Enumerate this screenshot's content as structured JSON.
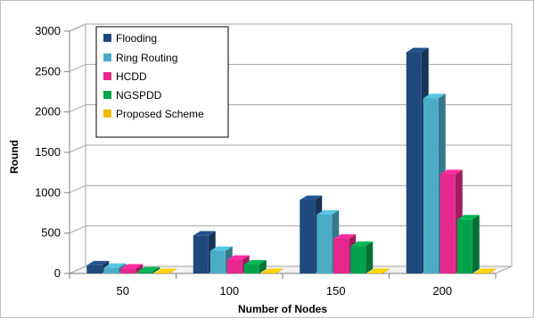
{
  "chart_data": {
    "type": "bar",
    "title": "",
    "xlabel": "Number of Nodes",
    "ylabel": "Round",
    "categories": [
      "50",
      "100",
      "150",
      "200"
    ],
    "ylim": [
      0,
      3000
    ],
    "yticks": [
      "0",
      "500",
      "1000",
      "1500",
      "2000",
      "2500",
      "3000"
    ],
    "grid": true,
    "legend_position": "top-left",
    "series": [
      {
        "name": "Flooding",
        "color": "#1F497D",
        "values": [
          100,
          470,
          910,
          2740
        ]
      },
      {
        "name": "Ring Routing",
        "color": "#4BACC6",
        "values": [
          70,
          280,
          730,
          2170
        ]
      },
      {
        "name": "HCDD",
        "color": "#E6288C",
        "values": [
          60,
          170,
          430,
          1230
        ]
      },
      {
        "name": "NGSPDD",
        "color": "#00A14B",
        "values": [
          25,
          110,
          340,
          670
        ]
      },
      {
        "name": "Proposed Scheme",
        "color": "#F2B800",
        "values": [
          5,
          5,
          5,
          5
        ]
      }
    ]
  }
}
